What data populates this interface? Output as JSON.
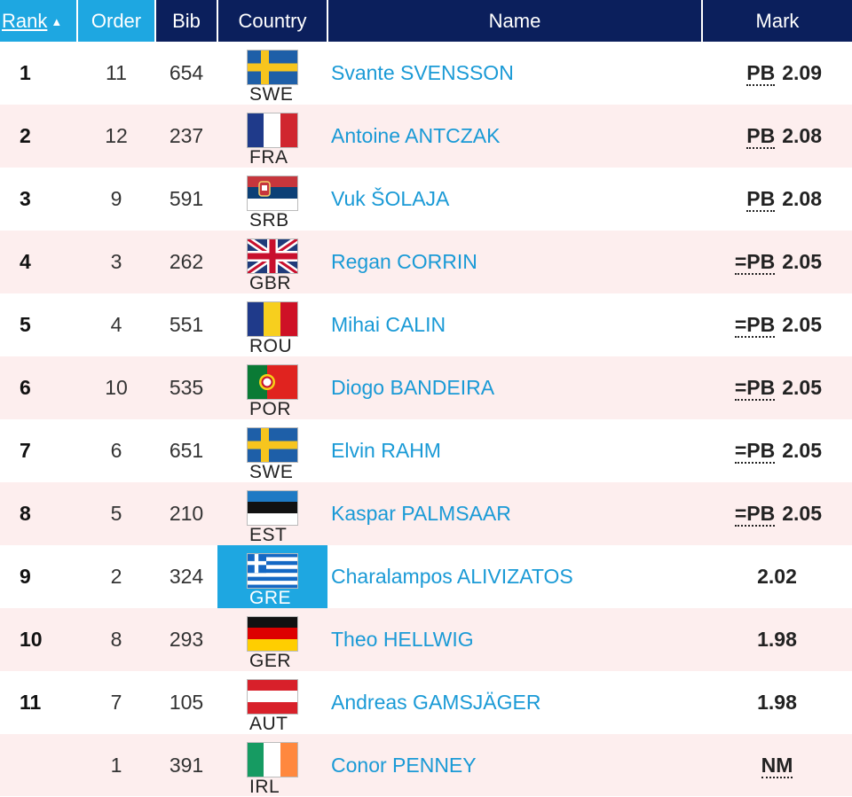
{
  "headers": {
    "rank": "Rank",
    "order": "Order",
    "bib": "Bib",
    "country": "Country",
    "name": "Name",
    "mark": "Mark",
    "sort_indicator": "▲"
  },
  "colors": {
    "header_dark": "#0b1f5c",
    "header_accent": "#1ea7e1",
    "row_stripe": "#fdeeee",
    "name_link": "#1a9ad6"
  },
  "rows": [
    {
      "rank": "1",
      "order": "11",
      "bib": "654",
      "flag": "SWE",
      "country": "SWE",
      "name": "Svante SVENSSON",
      "pb": "PB",
      "mark": "2.09"
    },
    {
      "rank": "2",
      "order": "12",
      "bib": "237",
      "flag": "FRA",
      "country": "FRA",
      "name": "Antoine ANTCZAK",
      "pb": "PB",
      "mark": "2.08"
    },
    {
      "rank": "3",
      "order": "9",
      "bib": "591",
      "flag": "SRB",
      "country": "SRB",
      "name": "Vuk ŠOLAJA",
      "pb": "PB",
      "mark": "2.08"
    },
    {
      "rank": "4",
      "order": "3",
      "bib": "262",
      "flag": "GBR",
      "country": "GBR",
      "name": "Regan CORRIN",
      "pb": "=PB",
      "mark": "2.05"
    },
    {
      "rank": "5",
      "order": "4",
      "bib": "551",
      "flag": "ROU",
      "country": "ROU",
      "name": "Mihai CALIN",
      "pb": "=PB",
      "mark": "2.05"
    },
    {
      "rank": "6",
      "order": "10",
      "bib": "535",
      "flag": "POR",
      "country": "POR",
      "name": "Diogo BANDEIRA",
      "pb": "=PB",
      "mark": "2.05"
    },
    {
      "rank": "7",
      "order": "6",
      "bib": "651",
      "flag": "SWE",
      "country": "SWE",
      "name": "Elvin RAHM",
      "pb": "=PB",
      "mark": "2.05"
    },
    {
      "rank": "8",
      "order": "5",
      "bib": "210",
      "flag": "EST",
      "country": "EST",
      "name": "Kaspar PALMSAAR",
      "pb": "=PB",
      "mark": "2.05"
    },
    {
      "rank": "9",
      "order": "2",
      "bib": "324",
      "flag": "GRE",
      "country": "GRE",
      "name": "Charalampos ALIVIZATOS",
      "pb": "",
      "mark": "2.02",
      "highlight": true
    },
    {
      "rank": "10",
      "order": "8",
      "bib": "293",
      "flag": "GER",
      "country": "GER",
      "name": "Theo HELLWIG",
      "pb": "",
      "mark": "1.98"
    },
    {
      "rank": "11",
      "order": "7",
      "bib": "105",
      "flag": "AUT",
      "country": "AUT",
      "name": "Andreas GAMSJÄGER",
      "pb": "",
      "mark": "1.98"
    },
    {
      "rank": "",
      "order": "1",
      "bib": "391",
      "flag": "IRL",
      "country": "IRL",
      "name": "Conor PENNEY",
      "pb": "",
      "mark": "NM"
    }
  ]
}
